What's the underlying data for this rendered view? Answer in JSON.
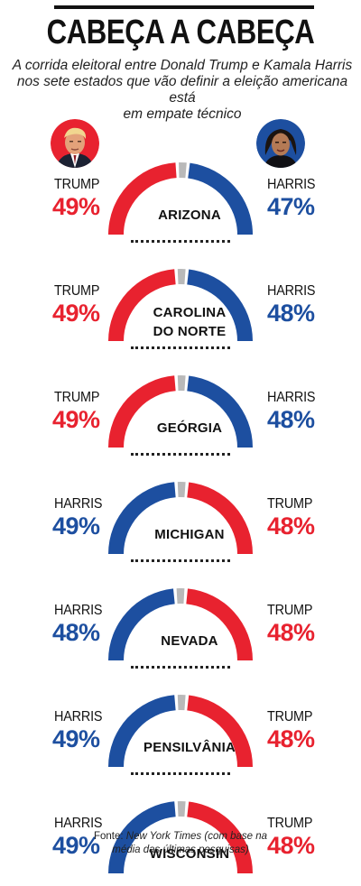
{
  "header": {
    "title": "CABEÇA A CABEÇA",
    "subtitle_lines": [
      "A corrida eleitoral entre Donald Trump e Kamala Harris",
      "nos sete estados que vão definir a eleição americana está",
      "em empate técnico"
    ]
  },
  "colors": {
    "trump": "#e8222f",
    "harris": "#1d4fa0",
    "undecided": "#b9b9b9"
  },
  "chart_data": {
    "type": "gauge",
    "title": "CABEÇA A CABEÇA",
    "unit": "%",
    "states": [
      {
        "state": "ARIZONA",
        "left": {
          "name": "TRUMP",
          "value": 49,
          "color": "#e8222f"
        },
        "right": {
          "name": "HARRIS",
          "value": 47,
          "color": "#1d4fa0"
        }
      },
      {
        "state": "CAROLINA DO NORTE",
        "left": {
          "name": "TRUMP",
          "value": 49,
          "color": "#e8222f"
        },
        "right": {
          "name": "HARRIS",
          "value": 48,
          "color": "#1d4fa0"
        }
      },
      {
        "state": "GEÓRGIA",
        "left": {
          "name": "TRUMP",
          "value": 49,
          "color": "#e8222f"
        },
        "right": {
          "name": "HARRIS",
          "value": 48,
          "color": "#1d4fa0"
        }
      },
      {
        "state": "MICHIGAN",
        "left": {
          "name": "HARRIS",
          "value": 49,
          "color": "#1d4fa0"
        },
        "right": {
          "name": "TRUMP",
          "value": 48,
          "color": "#e8222f"
        }
      },
      {
        "state": "NEVADA",
        "left": {
          "name": "HARRIS",
          "value": 48,
          "color": "#1d4fa0"
        },
        "right": {
          "name": "TRUMP",
          "value": 48,
          "color": "#e8222f"
        }
      },
      {
        "state": "PENSILVÂNIA",
        "left": {
          "name": "HARRIS",
          "value": 49,
          "color": "#1d4fa0"
        },
        "right": {
          "name": "TRUMP",
          "value": 48,
          "color": "#e8222f"
        }
      },
      {
        "state": "WISCONSIN",
        "left": {
          "name": "HARRIS",
          "value": 49,
          "color": "#1d4fa0"
        },
        "right": {
          "name": "TRUMP",
          "value": 48,
          "color": "#e8222f"
        }
      }
    ]
  },
  "states_display": [
    {
      "left_name": "TRUMP",
      "left_pct": "49%",
      "right_name": "HARRIS",
      "right_pct": "47%",
      "label_lines": [
        "ARIZONA"
      ]
    },
    {
      "left_name": "TRUMP",
      "left_pct": "49%",
      "right_name": "HARRIS",
      "right_pct": "48%",
      "label_lines": [
        "CAROLINA",
        "DO NORTE"
      ]
    },
    {
      "left_name": "TRUMP",
      "left_pct": "49%",
      "right_name": "HARRIS",
      "right_pct": "48%",
      "label_lines": [
        "GEÓRGIA"
      ]
    },
    {
      "left_name": "HARRIS",
      "left_pct": "49%",
      "right_name": "TRUMP",
      "right_pct": "48%",
      "label_lines": [
        "MICHIGAN"
      ]
    },
    {
      "left_name": "HARRIS",
      "left_pct": "48%",
      "right_name": "TRUMP",
      "right_pct": "48%",
      "label_lines": [
        "NEVADA"
      ]
    },
    {
      "left_name": "HARRIS",
      "left_pct": "49%",
      "right_name": "TRUMP",
      "right_pct": "48%",
      "label_lines": [
        "PENSILVÂNIA"
      ]
    },
    {
      "left_name": "HARRIS",
      "left_pct": "49%",
      "right_name": "TRUMP",
      "right_pct": "48%",
      "label_lines": [
        "WISCONSIN"
      ]
    }
  ],
  "source": {
    "prefix": "Fonte: ",
    "outlet": "New York Times",
    "rest_line1": " (com base na",
    "line2": "média das últimas pesquisas)"
  },
  "photos": {
    "left": "trump-portrait",
    "right": "harris-portrait"
  }
}
